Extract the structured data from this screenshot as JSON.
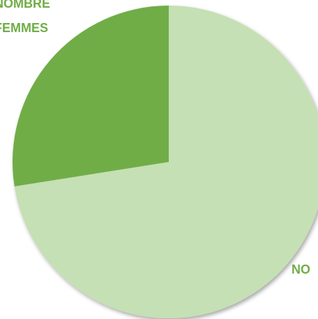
{
  "chart_data": {
    "type": "pie",
    "slices": [
      {
        "label": "NO",
        "value": 72.5,
        "color": "#C5E0B4"
      },
      {
        "label_lines": [
          "NOMBRE",
          "FEMMES"
        ],
        "value": 27.5,
        "color": "#70AD47"
      }
    ],
    "label_color": "#70AD47",
    "start_angle_deg": 0,
    "direction": "clockwise",
    "legend": "none"
  }
}
